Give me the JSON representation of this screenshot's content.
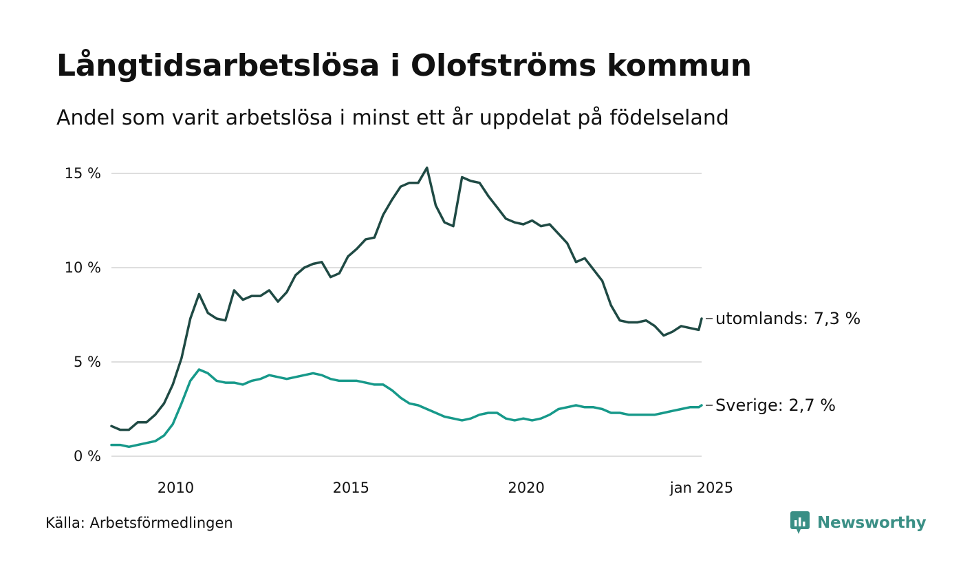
{
  "title": "Långtidsarbetslösa i Olofströms kommun",
  "subtitle": "Andel som varit arbetslösa i minst ett år uppdelat på födelseland",
  "source": "Källa: Arbetsförmedlingen",
  "brand": "Newsworthy",
  "colors": {
    "utomlands": "#1f4a44",
    "sverige": "#17998a",
    "grid": "#dedede",
    "brand": "#3a8f85"
  },
  "chart_data": {
    "type": "line",
    "title": "Långtidsarbetslösa i Olofströms kommun",
    "subtitle": "Andel som varit arbetslösa i minst ett år uppdelat på födelseland",
    "ylim": [
      0,
      15
    ],
    "y_ticks": [
      0,
      5,
      10,
      15
    ],
    "y_tick_labels": [
      "0 %",
      "5 %",
      "10 %",
      "15 %"
    ],
    "x_ticks": [
      2010,
      2015,
      2020,
      2025
    ],
    "x_tick_labels": [
      "2010",
      "2015",
      "2020",
      "jan 2025"
    ],
    "grid": "horizontal",
    "series": [
      {
        "name": "utomlands",
        "end_label": "utomlands: 7,3 %",
        "x": [
          "2008-03",
          "2008-06",
          "2008-09",
          "2008-12",
          "2009-03",
          "2009-06",
          "2009-09",
          "2009-12",
          "2010-03",
          "2010-06",
          "2010-09",
          "2010-12",
          "2011-03",
          "2011-06",
          "2011-09",
          "2011-12",
          "2012-03",
          "2012-06",
          "2012-09",
          "2012-12",
          "2013-03",
          "2013-06",
          "2013-09",
          "2013-12",
          "2014-03",
          "2014-06",
          "2014-09",
          "2014-12",
          "2015-03",
          "2015-06",
          "2015-09",
          "2015-12",
          "2016-03",
          "2016-06",
          "2016-09",
          "2016-12",
          "2017-03",
          "2017-06",
          "2017-09",
          "2017-12",
          "2018-03",
          "2018-06",
          "2018-09",
          "2018-12",
          "2019-03",
          "2019-06",
          "2019-09",
          "2019-12",
          "2020-03",
          "2020-06",
          "2020-09",
          "2020-12",
          "2021-03",
          "2021-06",
          "2021-09",
          "2021-12",
          "2022-03",
          "2022-06",
          "2022-09",
          "2022-12",
          "2023-03",
          "2023-06",
          "2023-09",
          "2023-12",
          "2024-03",
          "2024-06",
          "2024-09",
          "2024-12",
          "2025-01"
        ],
        "values": [
          1.6,
          1.4,
          1.4,
          1.8,
          1.8,
          2.2,
          2.8,
          3.8,
          5.2,
          7.3,
          8.6,
          7.6,
          7.3,
          7.2,
          8.8,
          8.3,
          8.5,
          8.5,
          8.8,
          8.2,
          8.7,
          9.6,
          10.0,
          10.2,
          10.3,
          9.5,
          9.7,
          10.6,
          11.0,
          11.5,
          11.6,
          12.8,
          13.6,
          14.3,
          14.5,
          14.5,
          15.3,
          13.3,
          12.4,
          12.2,
          14.8,
          14.6,
          14.5,
          13.8,
          13.2,
          12.6,
          12.4,
          12.3,
          12.5,
          12.2,
          12.3,
          11.8,
          11.3,
          10.3,
          10.5,
          9.9,
          9.3,
          8.0,
          7.2,
          7.1,
          7.1,
          7.2,
          6.9,
          6.4,
          6.6,
          6.9,
          6.8,
          6.7,
          7.3
        ]
      },
      {
        "name": "Sverige",
        "end_label": "Sverige: 2,7 %",
        "x": [
          "2008-03",
          "2008-06",
          "2008-09",
          "2008-12",
          "2009-03",
          "2009-06",
          "2009-09",
          "2009-12",
          "2010-03",
          "2010-06",
          "2010-09",
          "2010-12",
          "2011-03",
          "2011-06",
          "2011-09",
          "2011-12",
          "2012-03",
          "2012-06",
          "2012-09",
          "2012-12",
          "2013-03",
          "2013-06",
          "2013-09",
          "2013-12",
          "2014-03",
          "2014-06",
          "2014-09",
          "2014-12",
          "2015-03",
          "2015-06",
          "2015-09",
          "2015-12",
          "2016-03",
          "2016-06",
          "2016-09",
          "2016-12",
          "2017-03",
          "2017-06",
          "2017-09",
          "2017-12",
          "2018-03",
          "2018-06",
          "2018-09",
          "2018-12",
          "2019-03",
          "2019-06",
          "2019-09",
          "2019-12",
          "2020-03",
          "2020-06",
          "2020-09",
          "2020-12",
          "2021-03",
          "2021-06",
          "2021-09",
          "2021-12",
          "2022-03",
          "2022-06",
          "2022-09",
          "2022-12",
          "2023-03",
          "2023-06",
          "2023-09",
          "2023-12",
          "2024-03",
          "2024-06",
          "2024-09",
          "2024-12",
          "2025-01"
        ],
        "values": [
          0.6,
          0.6,
          0.5,
          0.6,
          0.7,
          0.8,
          1.1,
          1.7,
          2.8,
          4.0,
          4.6,
          4.4,
          4.0,
          3.9,
          3.9,
          3.8,
          4.0,
          4.1,
          4.3,
          4.2,
          4.1,
          4.2,
          4.3,
          4.4,
          4.3,
          4.1,
          4.0,
          4.0,
          4.0,
          3.9,
          3.8,
          3.8,
          3.5,
          3.1,
          2.8,
          2.7,
          2.5,
          2.3,
          2.1,
          2.0,
          1.9,
          2.0,
          2.2,
          2.3,
          2.3,
          2.0,
          1.9,
          2.0,
          1.9,
          2.0,
          2.2,
          2.5,
          2.6,
          2.7,
          2.6,
          2.6,
          2.5,
          2.3,
          2.3,
          2.2,
          2.2,
          2.2,
          2.2,
          2.3,
          2.4,
          2.5,
          2.6,
          2.6,
          2.7
        ]
      }
    ]
  }
}
